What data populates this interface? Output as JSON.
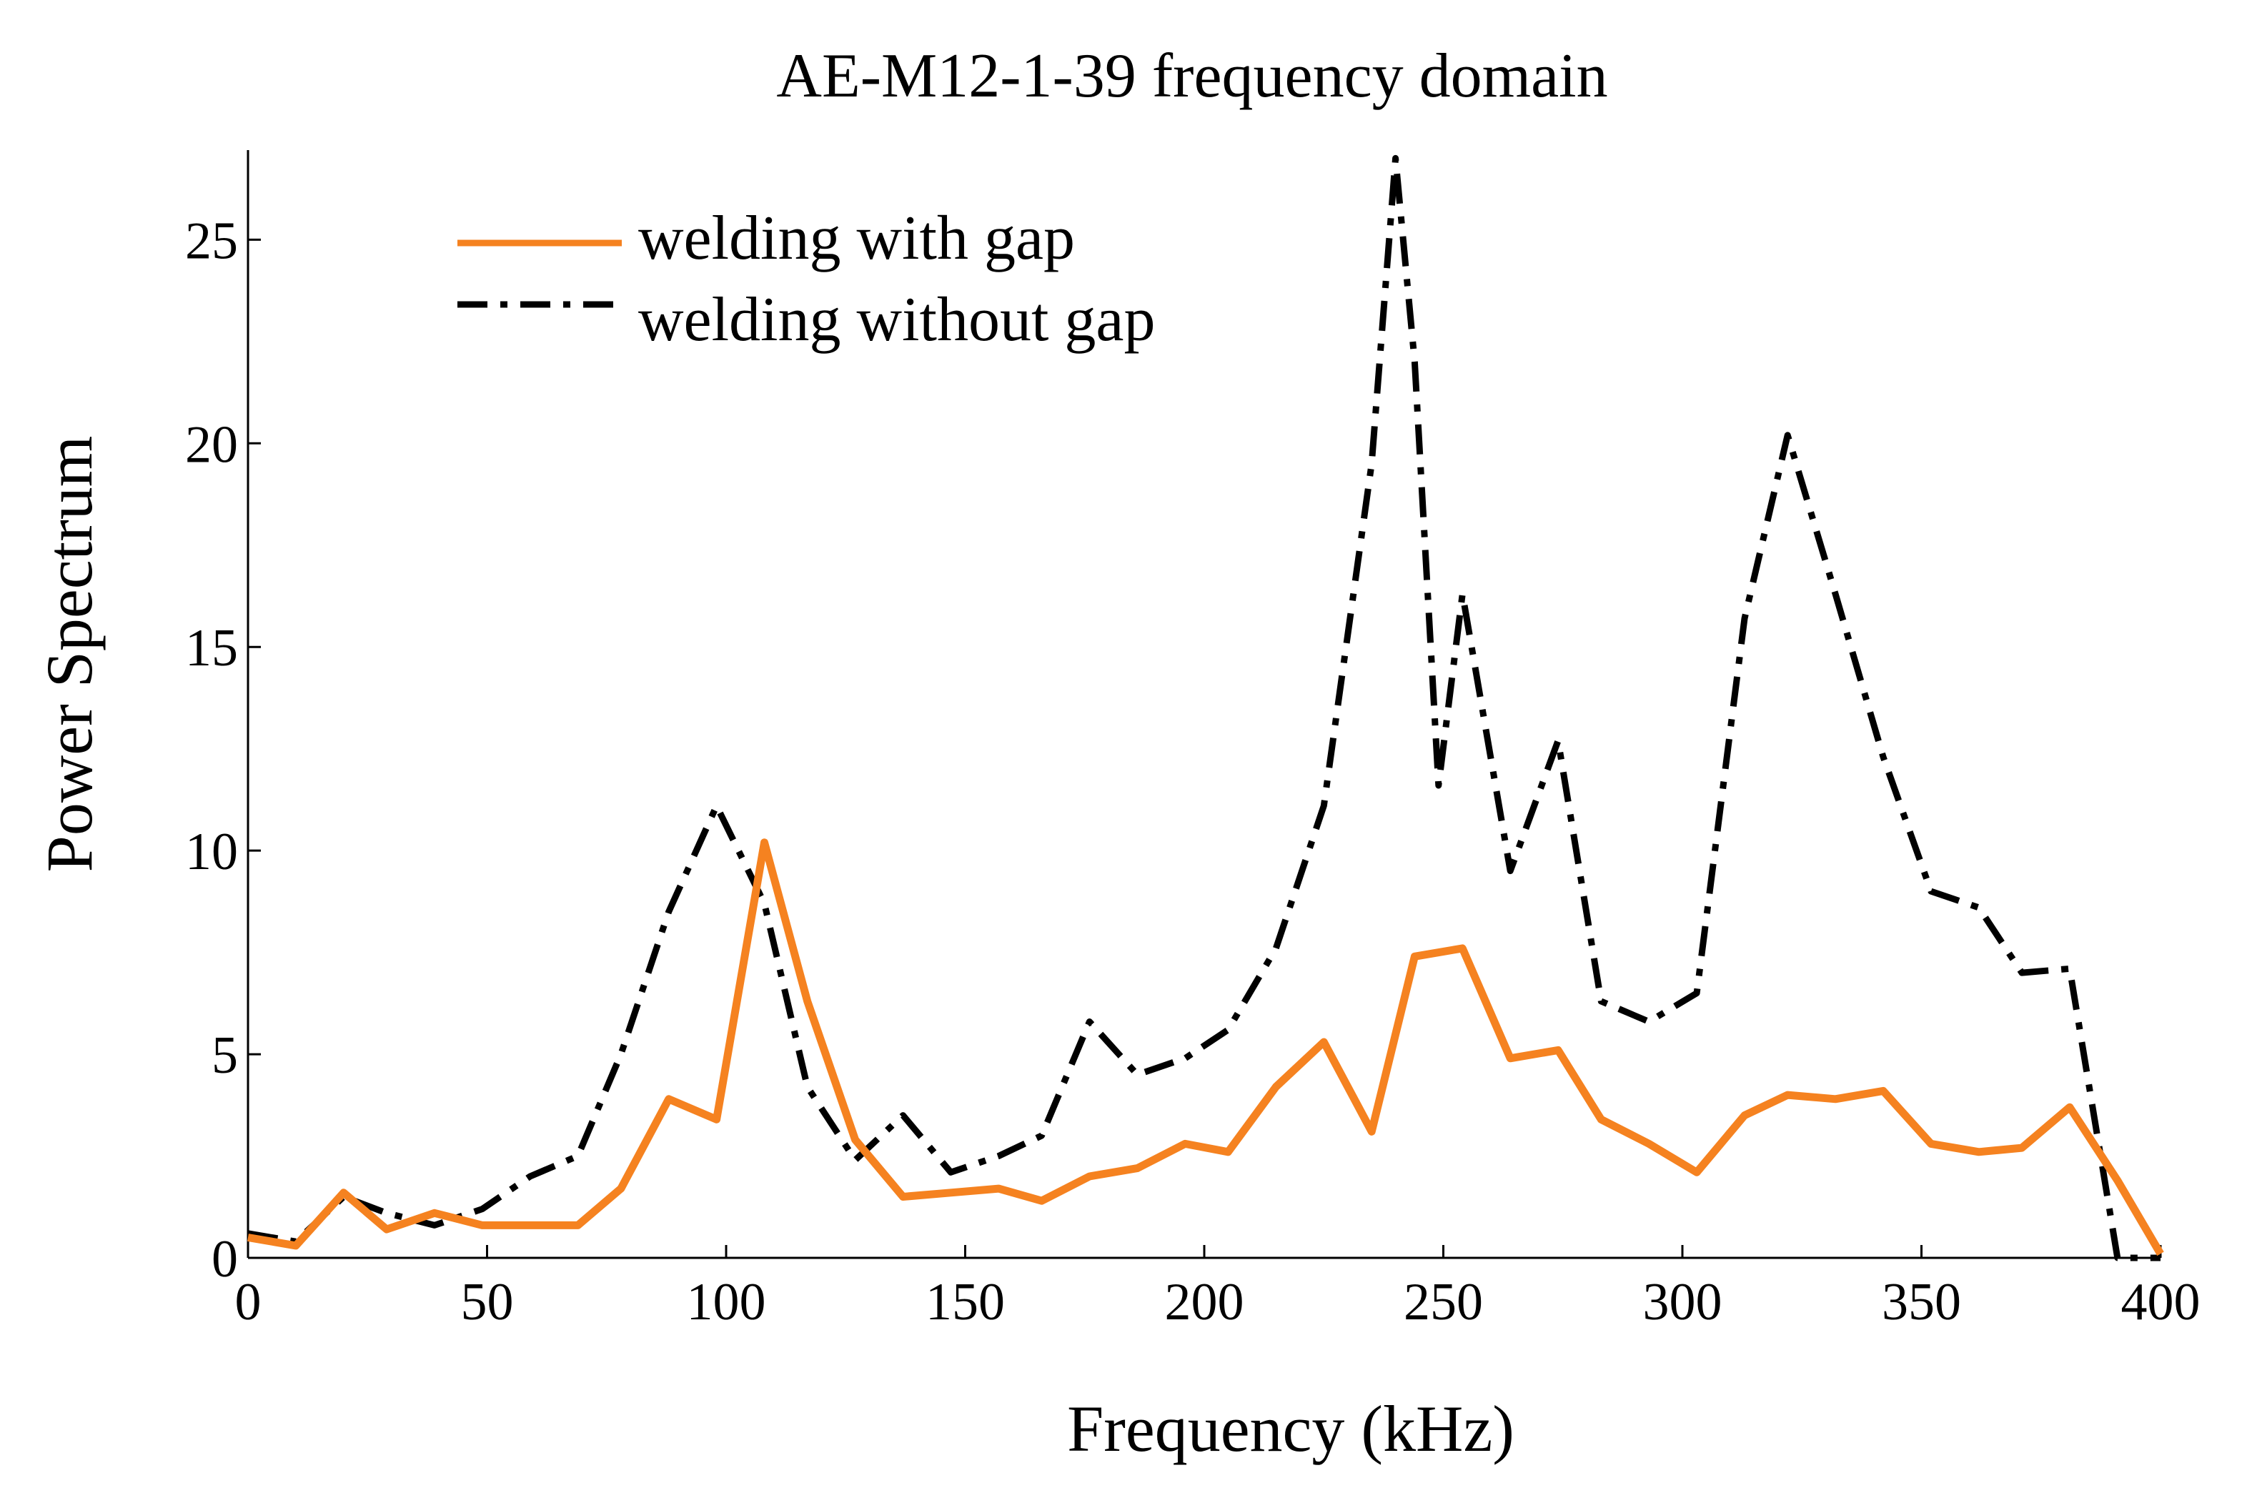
{
  "chart_data": {
    "type": "line",
    "title": "AE-M12-1-39 frequency domain",
    "xlabel": "Frequency (kHz)",
    "ylabel": "Power Spectrum",
    "xlim": [
      0,
      400
    ],
    "ylim": [
      0,
      27.2
    ],
    "xticks": [
      0,
      50,
      100,
      150,
      200,
      250,
      300,
      350,
      400
    ],
    "yticks": [
      0,
      5,
      10,
      15,
      20,
      25
    ],
    "grid": false,
    "legend_position": "top-left",
    "series": [
      {
        "name": "welding with gap",
        "style": "solid",
        "color": "#F58220",
        "x": [
          0,
          10,
          20,
          29,
          39,
          49,
          59,
          69,
          78,
          88,
          98,
          108,
          117,
          127,
          137,
          147,
          157,
          166,
          176,
          186,
          196,
          205,
          215,
          225,
          235,
          244,
          254,
          264,
          274,
          283,
          293,
          303,
          313,
          322,
          332,
          342,
          352,
          362,
          371,
          381,
          391,
          400
        ],
        "y": [
          0.5,
          0.3,
          1.6,
          0.7,
          1.1,
          0.8,
          0.8,
          0.8,
          1.7,
          3.9,
          3.4,
          10.2,
          6.3,
          2.9,
          1.5,
          1.6,
          1.7,
          1.4,
          2.0,
          2.2,
          2.8,
          2.6,
          4.2,
          5.3,
          3.1,
          7.4,
          7.6,
          4.9,
          5.1,
          3.4,
          2.8,
          2.1,
          3.5,
          4.0,
          3.9,
          4.1,
          2.8,
          2.6,
          2.7,
          3.7,
          1.9,
          0.1
        ]
      },
      {
        "name": "welding without gap",
        "style": "dashdot",
        "color": "#000000",
        "x": [
          0,
          10,
          20,
          29,
          39,
          49,
          59,
          69,
          78,
          88,
          98,
          108,
          117,
          127,
          137,
          147,
          157,
          166,
          176,
          186,
          196,
          205,
          215,
          225,
          235,
          240,
          244,
          249,
          254,
          264,
          274,
          283,
          293,
          303,
          313,
          322,
          332,
          342,
          352,
          362,
          371,
          381,
          391,
          400
        ],
        "y": [
          0.6,
          0.4,
          1.5,
          1.1,
          0.8,
          1.2,
          2.0,
          2.5,
          5.0,
          8.5,
          11.1,
          8.7,
          4.2,
          2.4,
          3.5,
          2.1,
          2.5,
          3.0,
          5.8,
          4.5,
          4.9,
          5.6,
          7.6,
          11.1,
          19.5,
          27.0,
          22.0,
          11.6,
          16.3,
          9.5,
          12.7,
          6.3,
          5.8,
          6.5,
          15.7,
          20.2,
          16.3,
          12.3,
          9.0,
          8.6,
          7.0,
          7.1,
          0.0,
          0.0
        ]
      }
    ]
  }
}
